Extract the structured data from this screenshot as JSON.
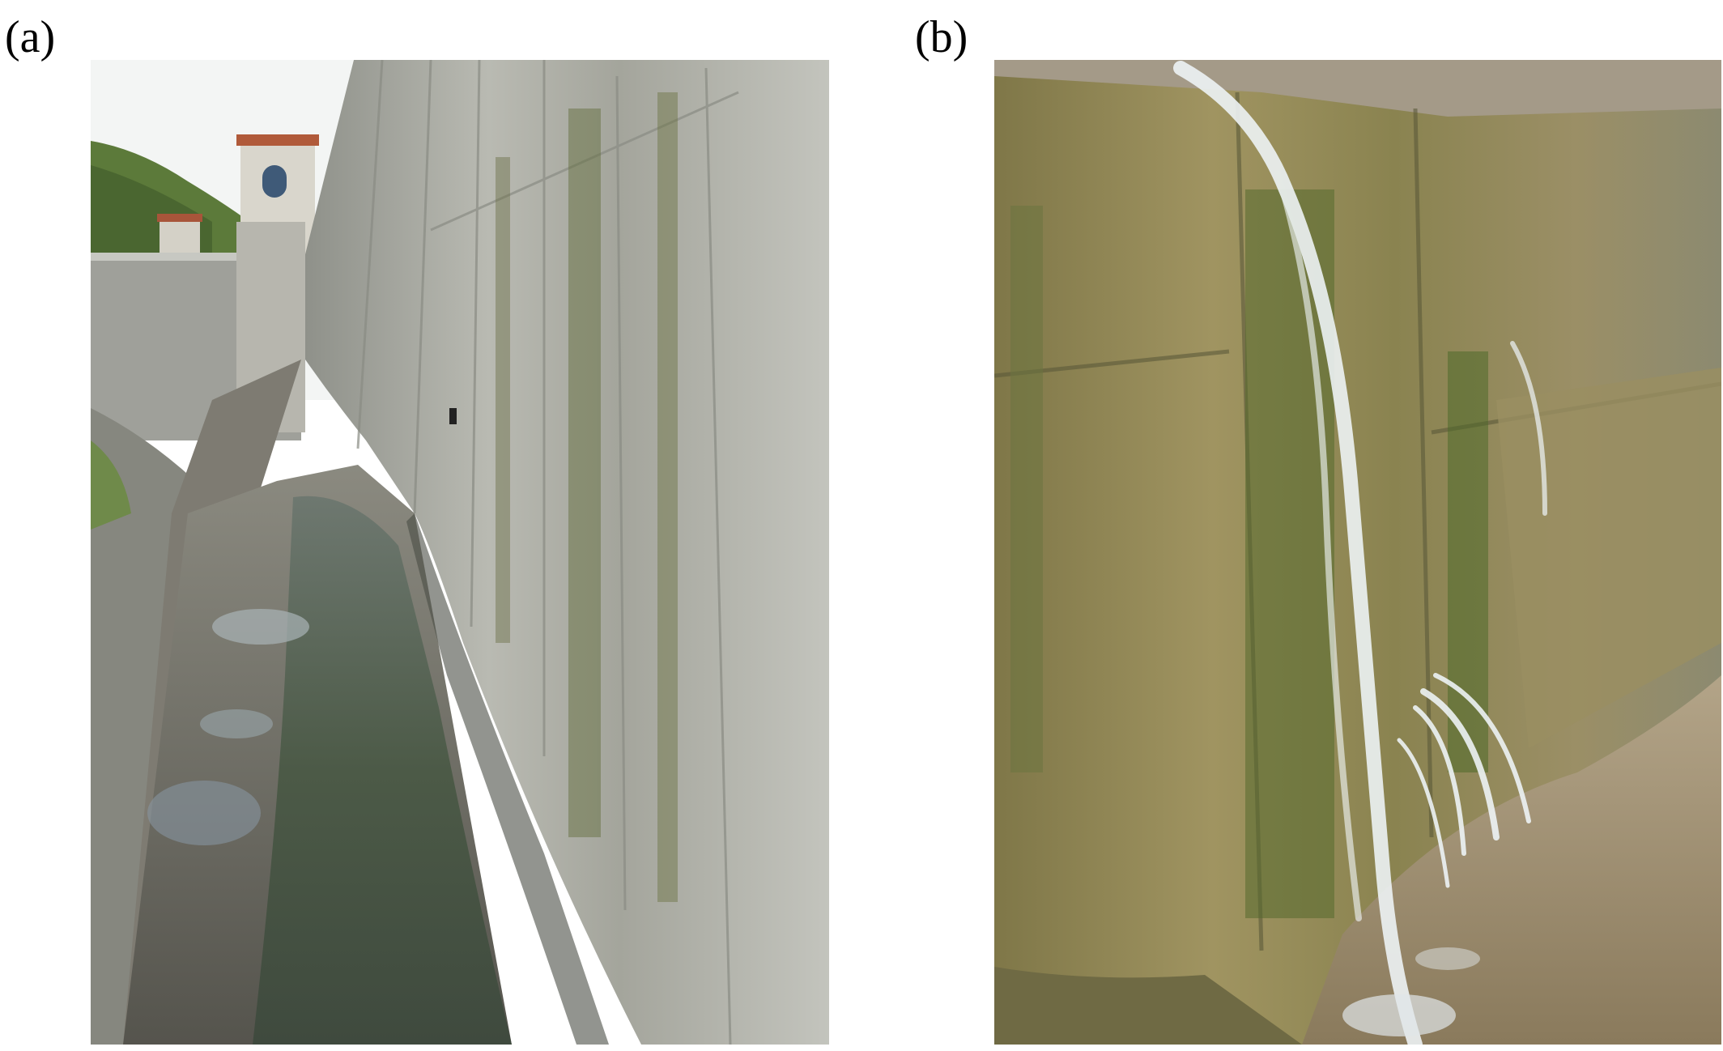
{
  "panels": [
    {
      "label": "(a)"
    },
    {
      "label": "(b)"
    }
  ],
  "colors": {
    "sky": "#f2f4f3",
    "concrete": "#b3b3aa",
    "concrete_dark": "#6f716a",
    "moss": "#5f6a38",
    "water": "#4e5b52",
    "wall_b": "#8e8350",
    "water_stream": "#e9eef0"
  }
}
